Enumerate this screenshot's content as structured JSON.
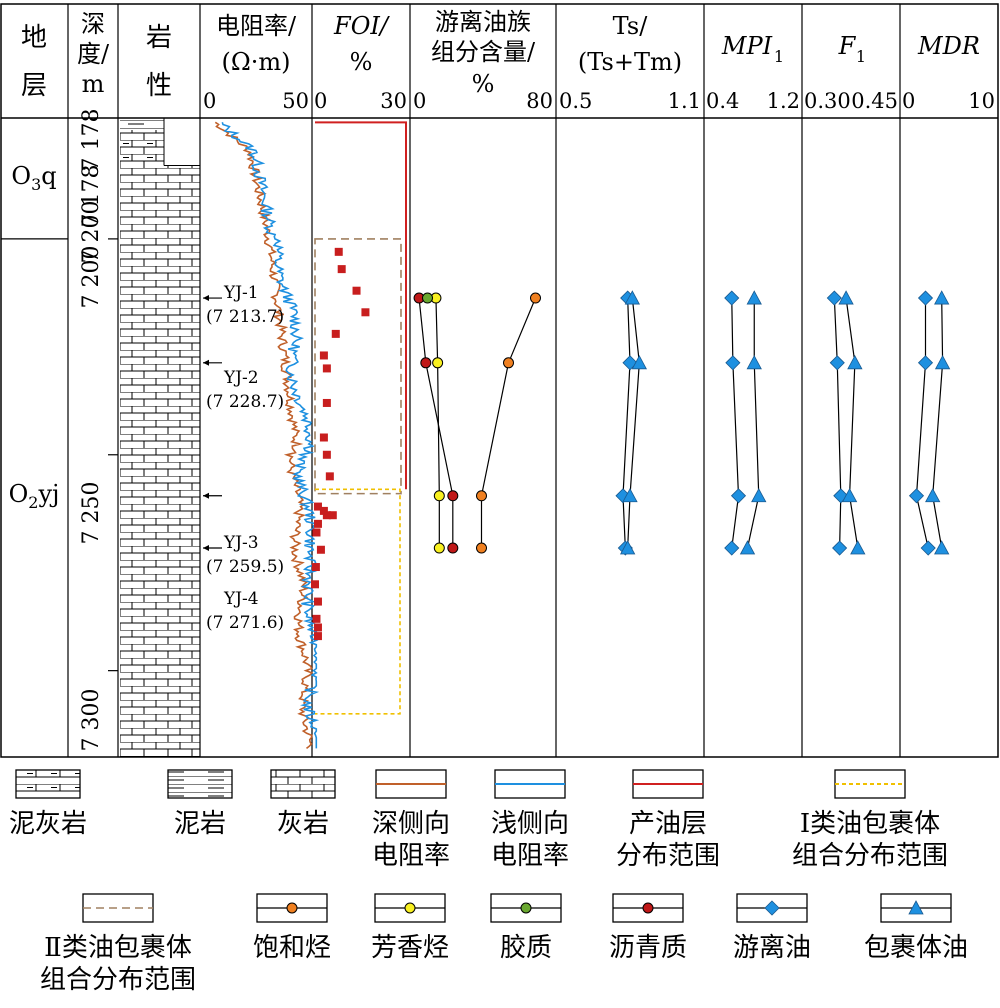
{
  "headers": {
    "strata": [
      "地",
      "层"
    ],
    "depth": [
      "深",
      "度/",
      "m"
    ],
    "lith": [
      "岩",
      "性"
    ],
    "res": [
      "电阻率/",
      "(Ω·m)"
    ],
    "foi": [
      "FOI/",
      "%"
    ],
    "group": [
      "游离油族",
      "组分含量/",
      "%"
    ],
    "ts": [
      "Ts/",
      "(Ts+Tm)"
    ],
    "mpi": [
      "MPI",
      "1"
    ],
    "f1": [
      "F",
      "1"
    ],
    "mdr": [
      "MDR"
    ]
  },
  "scales": {
    "res": [
      "0",
      "50"
    ],
    "foi": [
      "0",
      "30"
    ],
    "group": [
      "0",
      "80"
    ],
    "ts": [
      "0.5",
      "1.1"
    ],
    "mpi": [
      "0.4",
      "1.2"
    ],
    "f1": [
      "0.30",
      "0.45"
    ],
    "mdr": [
      "0",
      "10"
    ]
  },
  "strata": [
    {
      "text": "O",
      "sub": "3",
      "suffix": "q",
      "top": 7172,
      "bottom": 7200
    },
    {
      "text": "O",
      "sub": "2",
      "suffix": "yj",
      "top": 7200,
      "bottom": 7320
    }
  ],
  "depth_ticks": [
    "7 178",
    "7 178",
    "7 200",
    "7 200",
    "7 250",
    "7 300"
  ],
  "samples": [
    {
      "id": "YJ-1",
      "depth_label": "(7 213.7)",
      "depth": 7213.7
    },
    {
      "id": "YJ-2",
      "depth_label": "(7 228.7)",
      "depth": 7228.7
    },
    {
      "id": "YJ-3",
      "depth_label": "(7 259.5)",
      "depth": 7259.5
    },
    {
      "id": "YJ-4",
      "depth_label": "(7 271.6)",
      "depth": 7271.6
    }
  ],
  "chart_data": {
    "type": "line",
    "ylim": [
      7172,
      7320
    ],
    "y_reversed": true,
    "production_layer": [
      7173,
      7258
    ],
    "class1_range": [
      7258,
      7310
    ],
    "class2_range": [
      7200,
      7259
    ],
    "foi_points": [
      [
        8,
        7203
      ],
      [
        9,
        7207
      ],
      [
        14,
        7212
      ],
      [
        17,
        7217
      ],
      [
        3,
        7227
      ],
      [
        7,
        7222
      ],
      [
        4,
        7230
      ],
      [
        4,
        7238
      ],
      [
        3,
        7246
      ],
      [
        4,
        7250
      ],
      [
        5,
        7255
      ],
      [
        1,
        7262
      ],
      [
        3,
        7263
      ],
      [
        6,
        7264
      ],
      [
        4,
        7264
      ],
      [
        1,
        7266
      ],
      [
        0.5,
        7268
      ],
      [
        2,
        7272
      ],
      [
        0.3,
        7276
      ],
      [
        0,
        7280
      ],
      [
        1,
        7284
      ],
      [
        0.5,
        7288
      ],
      [
        1,
        7290
      ],
      [
        1,
        7292
      ]
    ],
    "group_saturated": [
      72,
      56,
      40,
      40
    ],
    "group_aromatic": [
      13,
      14,
      15,
      15
    ],
    "group_resin": [
      8,
      null,
      null,
      null
    ],
    "group_asphaltene": [
      3,
      7,
      23,
      23
    ],
    "ts_free": [
      0.79,
      0.8,
      0.77,
      0.78
    ],
    "ts_inclusion": [
      0.81,
      0.84,
      0.8,
      0.79
    ],
    "mpi_free": [
      0.62,
      0.63,
      0.68,
      0.62
    ],
    "mpi_inclusion": [
      0.82,
      0.82,
      0.86,
      0.76
    ],
    "f1_free": [
      0.35,
      0.355,
      0.361,
      0.359
    ],
    "f1_inclusion": [
      0.37,
      0.385,
      0.376,
      0.39
    ],
    "mdr_free": [
      2.5,
      2.5,
      1.5,
      2.8
    ],
    "mdr_inclusion": [
      4.3,
      4.4,
      3.3,
      4.3
    ],
    "series": [
      {
        "name": "深侧向电阻率",
        "color": "#c0602a"
      },
      {
        "name": "浅侧向电阻率",
        "color": "#1e90e0"
      },
      {
        "name": "产油层分布范围",
        "color": "#d02020"
      },
      {
        "name": "Ⅰ类油包裹体组合分布范围",
        "color": "#f0c000"
      },
      {
        "name": "Ⅱ类油包裹体组合分布范围",
        "color": "#a08060"
      },
      {
        "name": "饱和烃",
        "color": "#f08020"
      },
      {
        "name": "芳香烃",
        "color": "#f8f020"
      },
      {
        "name": "胶质",
        "color": "#6aa830"
      },
      {
        "name": "沥青质",
        "color": "#c01818"
      },
      {
        "name": "游离油",
        "color": "#1e90e0"
      },
      {
        "name": "包裹体油",
        "color": "#1e90e0"
      }
    ]
  },
  "legend": [
    {
      "key": "mudlime",
      "lines": [
        "泥灰岩"
      ]
    },
    {
      "key": "mudstone",
      "lines": [
        "泥岩"
      ]
    },
    {
      "key": "limestone",
      "lines": [
        "灰岩"
      ]
    },
    {
      "key": "deep",
      "lines": [
        "深侧向",
        "电阻率"
      ]
    },
    {
      "key": "shallow",
      "lines": [
        "浅侧向",
        "电阻率"
      ]
    },
    {
      "key": "prod",
      "lines": [
        "产油层",
        "分布范围"
      ]
    },
    {
      "key": "class1",
      "lines": [
        "Ⅰ类油包裹体",
        "组合分布范围"
      ]
    },
    {
      "key": "class2",
      "lines": [
        "Ⅱ类油包裹体",
        "组合分布范围"
      ]
    },
    {
      "key": "sat",
      "lines": [
        "饱和烃"
      ]
    },
    {
      "key": "aro",
      "lines": [
        "芳香烃"
      ]
    },
    {
      "key": "resin",
      "lines": [
        "胶质"
      ]
    },
    {
      "key": "asph",
      "lines": [
        "沥青质"
      ]
    },
    {
      "key": "free",
      "lines": [
        "游离油"
      ]
    },
    {
      "key": "incl",
      "lines": [
        "包裹体油"
      ]
    }
  ]
}
